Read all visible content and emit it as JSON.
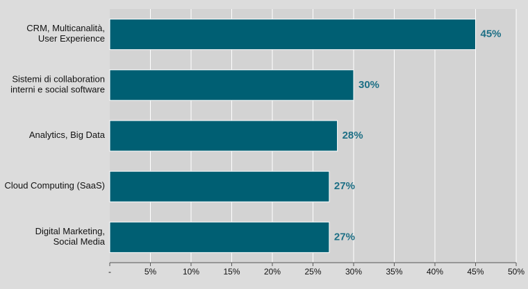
{
  "chart_data": {
    "type": "bar",
    "orientation": "horizontal",
    "categories": [
      [
        "CRM, Multicanalità,",
        "User Experience"
      ],
      [
        "Sistemi di collaboration",
        "interni e social software"
      ],
      [
        "Analytics, Big Data"
      ],
      [
        "Cloud Computing (SaaS)"
      ],
      [
        "Digital Marketing,",
        "Social Media"
      ]
    ],
    "values": [
      45,
      30,
      28,
      27,
      27
    ],
    "data_labels": [
      "45%",
      "30%",
      "28%",
      "27%",
      "27%"
    ],
    "xlim": [
      0,
      50
    ],
    "xticks": [
      0,
      5,
      10,
      15,
      20,
      25,
      30,
      35,
      40,
      45,
      50
    ],
    "xtick_labels": [
      "-",
      "5%",
      "10%",
      "15%",
      "20%",
      "25%",
      "30%",
      "35%",
      "40%",
      "45%",
      "50%"
    ],
    "grid": true,
    "colors": {
      "bar": "#005f73",
      "bar_stroke": "#ffffff",
      "label": "#1d6f85",
      "plot_bg": "#d3d3d3",
      "gridline": "#ffffff",
      "axis": "#555555"
    }
  }
}
